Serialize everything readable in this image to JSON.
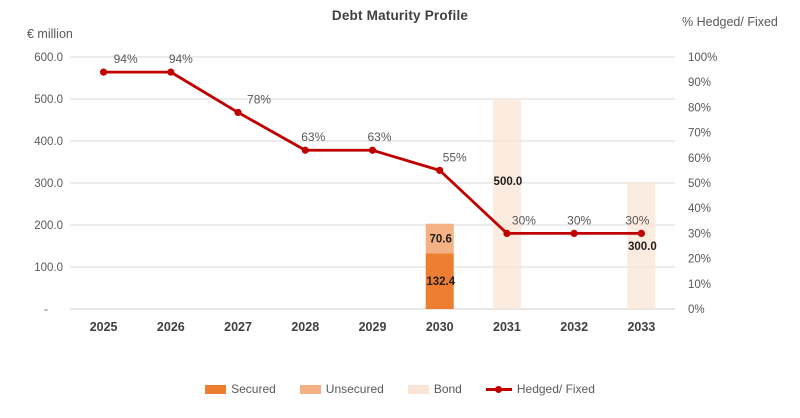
{
  "chart_data": {
    "type": "combo-bar-line",
    "title": "Debt Maturity Profile",
    "left_axis": {
      "unit_label": "€ million",
      "min": 0,
      "max": 600,
      "tick_values": [
        600,
        500,
        400,
        300,
        200,
        100,
        0
      ],
      "tick_labels": [
        "600.0",
        "500.0",
        "400.0",
        "300.0",
        "200.0",
        "100.0",
        "-"
      ]
    },
    "right_axis": {
      "unit_label": "% Hedged/ Fixed",
      "min": 0,
      "max": 100,
      "tick_values": [
        100,
        90,
        80,
        70,
        60,
        50,
        40,
        30,
        20,
        10,
        0
      ],
      "tick_labels": [
        "100%",
        "90%",
        "80%",
        "70%",
        "60%",
        "50%",
        "40%",
        "30%",
        "20%",
        "10%",
        "0%"
      ]
    },
    "categories": [
      "2025",
      "2026",
      "2027",
      "2028",
      "2029",
      "2030",
      "2031",
      "2032",
      "2033"
    ],
    "bar_series": [
      {
        "name": "Secured",
        "color": "#ED7D31",
        "opacity": 1,
        "values": [
          null,
          null,
          null,
          null,
          null,
          132.4,
          null,
          null,
          null
        ],
        "data_labels": [
          null,
          null,
          null,
          null,
          null,
          "132.4",
          null,
          null,
          null
        ]
      },
      {
        "name": "Unsecured",
        "color": "#F4B183",
        "opacity": 1,
        "values": [
          null,
          null,
          null,
          null,
          null,
          70.6,
          null,
          null,
          null
        ],
        "data_labels": [
          null,
          null,
          null,
          null,
          null,
          "70.6",
          null,
          null,
          null
        ]
      },
      {
        "name": "Bond",
        "color": "#FBE5D6",
        "opacity": 0.78,
        "values": [
          null,
          null,
          null,
          null,
          null,
          null,
          500.0,
          null,
          300.0
        ],
        "data_labels": [
          null,
          null,
          null,
          null,
          null,
          null,
          "500.0",
          null,
          "300.0"
        ]
      }
    ],
    "line_series": {
      "name": "Hedged/ Fixed",
      "color": "#C00000",
      "values": [
        94,
        94,
        78,
        63,
        63,
        55,
        30,
        30,
        30
      ],
      "data_labels": [
        "94%",
        "94%",
        "78%",
        "63%",
        "63%",
        "55%",
        "30%",
        "30%",
        "30%"
      ]
    },
    "legend": [
      {
        "label": "Secured",
        "marker": "swatch",
        "color": "#ED7D31"
      },
      {
        "label": "Unsecured",
        "marker": "swatch",
        "color": "#F4B183"
      },
      {
        "label": "Bond",
        "marker": "swatch",
        "color": "#FBE5D6"
      },
      {
        "label": "Hedged/ Fixed",
        "marker": "line",
        "color": "#C00000"
      }
    ],
    "grid": true,
    "legend_position": "bottom",
    "colors": {
      "gridline": "#D9D9D9",
      "axis_line": "#CFCFCF",
      "axis_text": "#595959",
      "category_text": "#404040",
      "title_text": "#404040",
      "bar_label_text": "#1f1f1f",
      "point_label_text": "#595959",
      "background": "#FFFFFF"
    }
  }
}
